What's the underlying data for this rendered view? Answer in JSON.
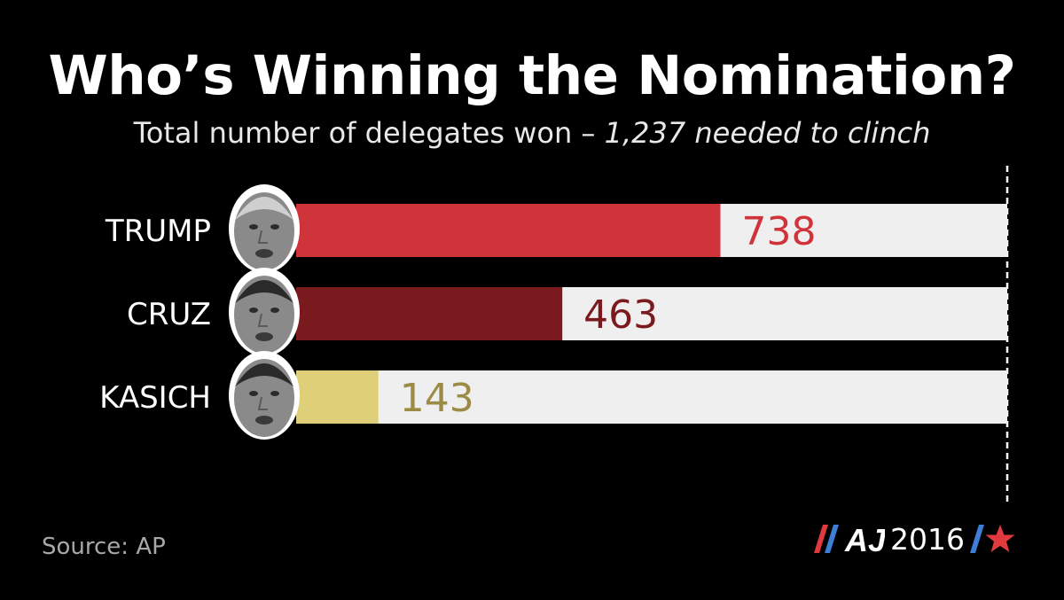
{
  "header": {
    "title": "Who’s Winning the Nomination?",
    "subtitle_main": "Total number of delegates won – ",
    "subtitle_em": "1,237 needed to clinch"
  },
  "chart_data": {
    "type": "bar",
    "orientation": "horizontal",
    "categories": [
      "TRUMP",
      "CRUZ",
      "KASICH"
    ],
    "values": [
      738,
      463,
      143
    ],
    "value_labels": [
      "738",
      "463",
      "143"
    ],
    "colors": [
      "#d0333a",
      "#7a1a1e",
      "#e0cf79"
    ],
    "label_colors": [
      "#d0333a",
      "#7a1a1e",
      "#9c8b45"
    ],
    "track_color": "#efefef",
    "xlim": [
      0,
      1237
    ],
    "threshold": 1237,
    "grid": false,
    "legend": "none"
  },
  "footer": {
    "source": "Source: AP",
    "logo_text": "AJ",
    "logo_year": "2016"
  },
  "icons": [
    "trump-face-icon",
    "cruz-face-icon",
    "kasich-face-icon",
    "slash-stripes-icon",
    "aj-logo-icon",
    "star-icon"
  ]
}
